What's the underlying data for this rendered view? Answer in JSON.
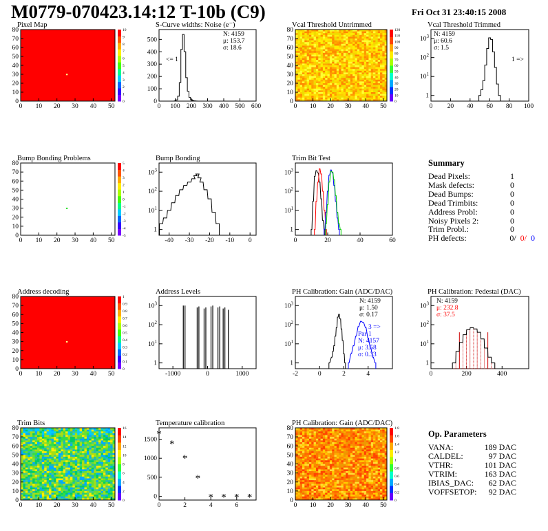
{
  "header": {
    "title": "M0779-070423.14:12 T-10b (C9)",
    "date": "Fri Oct 31 23:40:15 2008"
  },
  "colors": {
    "red": "#ff0000",
    "blue": "#0000ff",
    "green": "#00cc00",
    "black": "#000000",
    "hatch": "#cc0000"
  },
  "panels": [
    {
      "id": "pixel-map",
      "title": "Pixel Map",
      "kind": "map",
      "fill": "red",
      "dot": [
        25,
        29
      ],
      "x": [
        0,
        52
      ],
      "y": [
        0,
        80
      ],
      "xticks": [
        0,
        10,
        20,
        30,
        40,
        50
      ],
      "yticks": [
        0,
        10,
        20,
        30,
        40,
        50,
        60,
        70,
        80
      ],
      "zticks": [
        "0",
        "1",
        "2",
        "3",
        "4",
        "5",
        "6",
        "7",
        "8",
        "9",
        "10"
      ]
    },
    {
      "id": "noise",
      "title": "S-Curve widths: Noise (e⁻)",
      "kind": "hist",
      "x": [
        0,
        600
      ],
      "xticks": [
        0,
        100,
        200,
        300,
        400,
        500,
        600
      ],
      "y": [
        0,
        580
      ],
      "yticks": [
        0,
        100,
        200,
        300,
        400,
        500
      ],
      "stats": [
        "N: 4159",
        "μ: 153.7",
        "σ: 18.6"
      ],
      "arrow": "<= 1"
    },
    {
      "id": "vcal-untrimmed",
      "title": "Vcal Threshold Untrimmed",
      "kind": "noise",
      "x": [
        0,
        52
      ],
      "y": [
        0,
        80
      ],
      "xticks": [
        0,
        10,
        20,
        30,
        40,
        50
      ],
      "yticks": [
        0,
        10,
        20,
        30,
        40,
        50,
        60,
        70,
        80
      ],
      "zticks": [
        "0",
        "10",
        "20",
        "30",
        "40",
        "50",
        "60",
        "70",
        "80",
        "90",
        "100",
        "110",
        "120"
      ]
    },
    {
      "id": "vcal-trimmed",
      "title": "Vcal Threshold Trimmed",
      "kind": "loghist",
      "x": [
        0,
        100
      ],
      "xticks": [
        0,
        20,
        40,
        60,
        80,
        100
      ],
      "stats": [
        "N: 4159",
        "μ: 60.6",
        "σ:   1.5"
      ],
      "arrow": "1 =>"
    },
    {
      "id": "bump-problems",
      "title": "Bump Bonding Problems",
      "kind": "map",
      "fill": "white",
      "dot": [
        25,
        29
      ],
      "dotcolor": "#30e030",
      "x": [
        0,
        52
      ],
      "y": [
        0,
        80
      ],
      "xticks": [
        0,
        10,
        20,
        30,
        40,
        50
      ],
      "yticks": [
        0,
        10,
        20,
        30,
        40,
        50,
        60,
        70,
        80
      ],
      "zticks": [
        "-5",
        "-4",
        "-3",
        "-2",
        "-1",
        "0",
        "1",
        "2",
        "3",
        "4",
        "5"
      ]
    },
    {
      "id": "bump-bonding",
      "title": "Bump Bonding",
      "kind": "loghist",
      "x": [
        -45,
        3
      ],
      "xticks": [
        -40,
        -30,
        -20,
        -10,
        0
      ]
    },
    {
      "id": "trim-bit-test",
      "title": "Trim Bit Test",
      "kind": "loghist",
      "x": [
        0,
        60
      ],
      "xticks": [
        0,
        20,
        40,
        60
      ]
    },
    {
      "id": "address-decoding",
      "title": "Address decoding",
      "kind": "map",
      "fill": "red",
      "dot": [
        25,
        29
      ],
      "x": [
        0,
        52
      ],
      "y": [
        0,
        80
      ],
      "xticks": [
        0,
        10,
        20,
        30,
        40,
        50
      ],
      "yticks": [
        0,
        10,
        20,
        30,
        40,
        50,
        60,
        70,
        80
      ],
      "zticks": [
        "0",
        "0.1",
        "0.2",
        "0.3",
        "0.4",
        "0.5",
        "0.6",
        "0.7",
        "0.8",
        "0.9",
        "1"
      ]
    },
    {
      "id": "address-levels",
      "title": "Address Levels",
      "kind": "loghist",
      "x": [
        -1400,
        1400
      ],
      "xticks": [
        -1000,
        0,
        1000
      ]
    },
    {
      "id": "ph-gain",
      "title": "PH Calibration: Gain (ADC/DAC)",
      "kind": "loghist",
      "x": [
        -2,
        6
      ],
      "xticks": [
        -2,
        0,
        2,
        4
      ],
      "stats": [
        "N: 4159",
        "μ: 1.50",
        "σ: 0.17"
      ],
      "stats2": [
        "Par 1",
        "N: 4157",
        "μ: 3.58",
        "σ: 0.33"
      ],
      "arrow": "3 =>"
    },
    {
      "id": "ph-pedestal",
      "title": "PH Calibration: Pedestal (DAC)",
      "kind": "loghist",
      "x": [
        0,
        550
      ],
      "xticks": [
        0,
        200,
        400
      ],
      "stats": [
        "N: 4159",
        "μ: 232.8",
        "σ: 37.5"
      ]
    },
    {
      "id": "trim-bits",
      "title": "Trim Bits",
      "kind": "noise",
      "x": [
        0,
        52
      ],
      "y": [
        0,
        80
      ],
      "xticks": [
        0,
        10,
        20,
        30,
        40,
        50
      ],
      "yticks": [
        0,
        10,
        20,
        30,
        40,
        50,
        60,
        70,
        80
      ],
      "zticks": [
        "0",
        "2",
        "4",
        "6",
        "8",
        "10",
        "12",
        "14",
        "16"
      ]
    },
    {
      "id": "temperature",
      "title": "Temperature calibration",
      "kind": "scatter",
      "x": [
        0,
        7.5
      ],
      "xticks": [
        0,
        2,
        4,
        6
      ],
      "y": [
        -100,
        1800
      ],
      "yticks": [
        0,
        500,
        1000,
        1500
      ]
    },
    {
      "id": "ph-gain-map",
      "title": "PH Calibration: Gain (ADC/DAC)",
      "kind": "noise",
      "x": [
        0,
        52
      ],
      "y": [
        0,
        80
      ],
      "xticks": [
        0,
        10,
        20,
        30,
        40,
        50
      ],
      "yticks": [
        0,
        10,
        20,
        30,
        40,
        50,
        60,
        70,
        80
      ],
      "zticks": [
        "0",
        "0.2",
        "0.4",
        "0.6",
        "0.8",
        "1",
        "1.2",
        "1.4",
        "1.6",
        "1.8"
      ]
    }
  ],
  "chart_data": [
    {
      "type": "line",
      "name": "noise",
      "x": [
        100,
        110,
        120,
        130,
        140,
        150,
        160,
        170,
        180,
        190,
        200,
        210,
        220,
        230
      ],
      "y": [
        2,
        10,
        40,
        150,
        420,
        540,
        400,
        190,
        80,
        30,
        12,
        5,
        2,
        1
      ],
      "xlim": [
        0,
        600
      ],
      "ylim": [
        0,
        580
      ]
    },
    {
      "type": "line",
      "name": "vcal-trimmed",
      "x": [
        50,
        52,
        54,
        56,
        58,
        60,
        62,
        64,
        66,
        68,
        70
      ],
      "y": [
        1,
        2,
        6,
        40,
        300,
        1100,
        900,
        200,
        30,
        4,
        1
      ],
      "xlim": [
        0,
        100
      ],
      "ylim": [
        0.5,
        3000
      ]
    },
    {
      "type": "line",
      "name": "bump-bonding",
      "x": [
        -44,
        -42,
        -40,
        -38,
        -36,
        -34,
        -32,
        -30,
        -28,
        -27,
        -26,
        -25,
        -24,
        -22,
        -20,
        -18,
        -16
      ],
      "y": [
        2,
        4,
        10,
        25,
        60,
        120,
        200,
        300,
        450,
        650,
        800,
        500,
        300,
        120,
        40,
        8,
        2
      ],
      "xlim": [
        -45,
        3
      ],
      "ylim": [
        0.5,
        3000
      ]
    },
    {
      "type": "line",
      "name": "trim-bit-test",
      "series": [
        {
          "name": "black",
          "x": [
            10,
            11,
            12,
            13,
            14,
            15,
            16,
            17,
            18
          ],
          "y": [
            1,
            30,
            600,
            1200,
            900,
            300,
            40,
            3,
            1
          ]
        },
        {
          "name": "red",
          "x": [
            12,
            13,
            14,
            15,
            16,
            17,
            18,
            19
          ],
          "y": [
            1,
            30,
            300,
            1500,
            800,
            100,
            10,
            1
          ]
        },
        {
          "name": "blue",
          "x": [
            18,
            19,
            20,
            21,
            22,
            23,
            24,
            25,
            26,
            27
          ],
          "y": [
            1,
            8,
            100,
            700,
            1300,
            900,
            200,
            30,
            4,
            1
          ]
        },
        {
          "name": "green",
          "x": [
            19,
            20,
            21,
            22,
            23,
            24,
            25,
            26,
            27,
            28
          ],
          "y": [
            2,
            20,
            300,
            1100,
            1000,
            400,
            60,
            8,
            2,
            1
          ]
        }
      ],
      "xlim": [
        0,
        60
      ],
      "ylim": [
        0.5,
        3000
      ]
    },
    {
      "type": "bar",
      "name": "address-levels",
      "x": [
        -700,
        -650,
        -300,
        -250,
        -100,
        -50,
        100,
        150,
        300,
        350,
        450,
        500,
        600
      ],
      "y": [
        1000,
        1000,
        800,
        900,
        700,
        800,
        900,
        1000,
        800,
        900,
        700,
        800,
        600
      ],
      "xlim": [
        -1400,
        1400
      ],
      "ylim": [
        0.5,
        3000
      ]
    },
    {
      "type": "line",
      "name": "ph-gain",
      "series": [
        {
          "name": "black",
          "x": [
            0.8,
            1.0,
            1.1,
            1.2,
            1.3,
            1.4,
            1.5,
            1.6,
            1.7,
            1.8,
            1.9,
            2.0,
            2.1
          ],
          "y": [
            1,
            2,
            4,
            8,
            25,
            70,
            250,
            350,
            200,
            60,
            15,
            3,
            1
          ]
        },
        {
          "name": "blue",
          "x": [
            2.4,
            2.6,
            2.8,
            3.0,
            3.2,
            3.4,
            3.6,
            3.8,
            4.0,
            4.2,
            4.4,
            4.6
          ],
          "y": [
            1,
            3,
            8,
            25,
            80,
            150,
            130,
            70,
            20,
            6,
            2,
            1
          ]
        }
      ],
      "xlim": [
        -2,
        6
      ],
      "ylim": [
        0.5,
        3000
      ]
    },
    {
      "type": "line",
      "name": "ph-pedestal",
      "x": [
        130,
        150,
        170,
        190,
        210,
        230,
        250,
        270,
        290,
        310,
        330,
        350
      ],
      "y": [
        1,
        4,
        12,
        30,
        55,
        70,
        60,
        40,
        18,
        6,
        2,
        1
      ],
      "xlim": [
        0,
        550
      ],
      "ylim": [
        0.5,
        3000
      ]
    },
    {
      "type": "scatter",
      "name": "temperature",
      "x": [
        0,
        1,
        2,
        3,
        4,
        5,
        6,
        7
      ],
      "y": [
        1650,
        1380,
        1000,
        480,
        -20,
        -20,
        -20,
        -20
      ],
      "xlim": [
        0,
        7.5
      ],
      "ylim": [
        -100,
        1800
      ]
    }
  ],
  "summary": {
    "title": "Summary",
    "rows": [
      {
        "label": "Dead Pixels:",
        "value": "1"
      },
      {
        "label": "Mask defects:",
        "value": "0"
      },
      {
        "label": "Dead Bumps:",
        "value": "0"
      },
      {
        "label": "Dead Trimbits:",
        "value": "0"
      },
      {
        "label": "Address Probl:",
        "value": "0"
      },
      {
        "label": "Noisy Pixels 2:",
        "value": "0"
      },
      {
        "label": "Trim Probl.:",
        "value": "0"
      }
    ],
    "ph_label": "PH defects:",
    "ph_values": [
      "0/",
      "0/",
      "0"
    ]
  },
  "op_params": {
    "title": "Op. Parameters",
    "rows": [
      {
        "label": "VANA:",
        "value": "189 DAC"
      },
      {
        "label": "CALDEL:",
        "value": "97 DAC"
      },
      {
        "label": "VTHR:",
        "value": "101 DAC"
      },
      {
        "label": "VTRIM:",
        "value": "163 DAC"
      },
      {
        "label": "IBIAS_DAC:",
        "value": "62 DAC"
      },
      {
        "label": "VOFFSETOP:",
        "value": "92 DAC"
      }
    ]
  }
}
